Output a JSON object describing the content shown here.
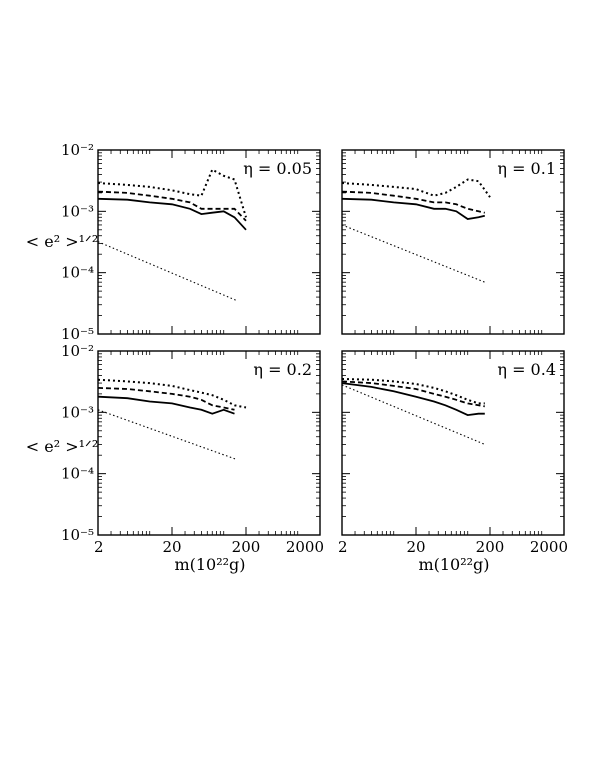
{
  "figure": {
    "ylabel": "< e² >¹ᐟ²",
    "xlabel": "m(10²²g)",
    "ytick_labels": [
      "10⁻²",
      "10⁻³",
      "10⁻⁴",
      "10⁻⁵"
    ],
    "xtick_labels": [
      "2",
      "20",
      "200",
      "2000"
    ]
  },
  "chart_data": [
    {
      "type": "line",
      "label": "η = 0.05",
      "xscale": "log",
      "yscale": "log",
      "xlim": [
        2,
        2000
      ],
      "ylim": [
        1e-05,
        0.01
      ],
      "series": [
        {
          "style": "dotted-bold",
          "x": [
            2,
            5,
            10,
            20,
            35,
            50,
            70,
            100,
            140,
            200
          ],
          "y": [
            0.0029,
            0.0027,
            0.0025,
            0.0022,
            0.0019,
            0.0018,
            0.0048,
            0.0038,
            0.0033,
            0.0008
          ]
        },
        {
          "style": "dashed",
          "x": [
            2,
            5,
            10,
            20,
            35,
            50,
            70,
            100,
            140,
            200
          ],
          "y": [
            0.0021,
            0.002,
            0.0018,
            0.0016,
            0.0014,
            0.0011,
            0.0011,
            0.0011,
            0.0011,
            0.0007
          ]
        },
        {
          "style": "solid",
          "x": [
            2,
            5,
            10,
            20,
            35,
            50,
            70,
            100,
            140,
            200
          ],
          "y": [
            0.0016,
            0.00155,
            0.0014,
            0.0013,
            0.0011,
            0.0009,
            0.00095,
            0.001,
            0.0008,
            0.0005
          ]
        },
        {
          "style": "dotted-fine",
          "x": [
            2,
            150
          ],
          "y": [
            0.00032,
            3.5e-05
          ]
        }
      ]
    },
    {
      "type": "line",
      "label": "η = 0.1",
      "xscale": "log",
      "yscale": "log",
      "xlim": [
        2,
        2000
      ],
      "ylim": [
        1e-05,
        0.01
      ],
      "series": [
        {
          "style": "dotted-bold",
          "x": [
            2,
            5,
            10,
            20,
            35,
            50,
            70,
            100,
            140,
            200
          ],
          "y": [
            0.0029,
            0.0027,
            0.0025,
            0.0023,
            0.0018,
            0.002,
            0.0025,
            0.0033,
            0.0031,
            0.0017
          ]
        },
        {
          "style": "dashed",
          "x": [
            2,
            5,
            10,
            20,
            35,
            50,
            70,
            100,
            140,
            170
          ],
          "y": [
            0.0021,
            0.002,
            0.0018,
            0.0016,
            0.0014,
            0.0014,
            0.0013,
            0.0011,
            0.001,
            0.00095
          ]
        },
        {
          "style": "solid",
          "x": [
            2,
            5,
            10,
            20,
            35,
            50,
            70,
            100,
            140,
            170
          ],
          "y": [
            0.0016,
            0.00155,
            0.0014,
            0.0013,
            0.0011,
            0.0011,
            0.001,
            0.00075,
            0.0008,
            0.00085
          ]
        },
        {
          "style": "dotted-fine",
          "x": [
            2,
            170
          ],
          "y": [
            0.0006,
            7e-05
          ]
        }
      ]
    },
    {
      "type": "line",
      "label": "η = 0.2",
      "xscale": "log",
      "yscale": "log",
      "xlim": [
        2,
        2000
      ],
      "ylim": [
        1e-05,
        0.01
      ],
      "series": [
        {
          "style": "dotted-bold",
          "x": [
            2,
            5,
            10,
            20,
            35,
            50,
            70,
            100,
            140,
            200
          ],
          "y": [
            0.0034,
            0.0032,
            0.003,
            0.0027,
            0.0023,
            0.0021,
            0.0019,
            0.0016,
            0.0013,
            0.0012
          ]
        },
        {
          "style": "dashed",
          "x": [
            2,
            5,
            10,
            20,
            35,
            50,
            70,
            100,
            140
          ],
          "y": [
            0.0025,
            0.0024,
            0.0022,
            0.002,
            0.0018,
            0.0016,
            0.0013,
            0.0012,
            0.0011
          ]
        },
        {
          "style": "solid",
          "x": [
            2,
            5,
            10,
            20,
            35,
            50,
            70,
            100,
            140
          ],
          "y": [
            0.0018,
            0.0017,
            0.0015,
            0.0014,
            0.0012,
            0.0011,
            0.00095,
            0.0011,
            0.00095
          ]
        },
        {
          "style": "dotted-fine",
          "x": [
            2,
            150
          ],
          "y": [
            0.0011,
            0.00017
          ]
        }
      ]
    },
    {
      "type": "line",
      "label": "η = 0.4",
      "xscale": "log",
      "yscale": "log",
      "xlim": [
        2,
        2000
      ],
      "ylim": [
        1e-05,
        0.01
      ],
      "series": [
        {
          "style": "dotted-bold",
          "x": [
            2,
            5,
            10,
            20,
            35,
            50,
            70,
            100,
            140,
            170
          ],
          "y": [
            0.0035,
            0.0034,
            0.0032,
            0.0029,
            0.0025,
            0.0022,
            0.0019,
            0.0016,
            0.0014,
            0.0014
          ]
        },
        {
          "style": "dashed",
          "x": [
            2,
            5,
            10,
            20,
            35,
            50,
            70,
            100,
            140,
            170
          ],
          "y": [
            0.0032,
            0.003,
            0.0027,
            0.0024,
            0.002,
            0.0018,
            0.0016,
            0.0014,
            0.0013,
            0.00125
          ]
        },
        {
          "style": "solid",
          "x": [
            2,
            5,
            10,
            20,
            35,
            50,
            70,
            100,
            140,
            170
          ],
          "y": [
            0.003,
            0.0026,
            0.0022,
            0.0018,
            0.0015,
            0.0013,
            0.0011,
            0.0009,
            0.00095,
            0.00095
          ]
        },
        {
          "style": "dotted-fine",
          "x": [
            2,
            170
          ],
          "y": [
            0.0028,
            0.0003
          ]
        }
      ]
    }
  ]
}
